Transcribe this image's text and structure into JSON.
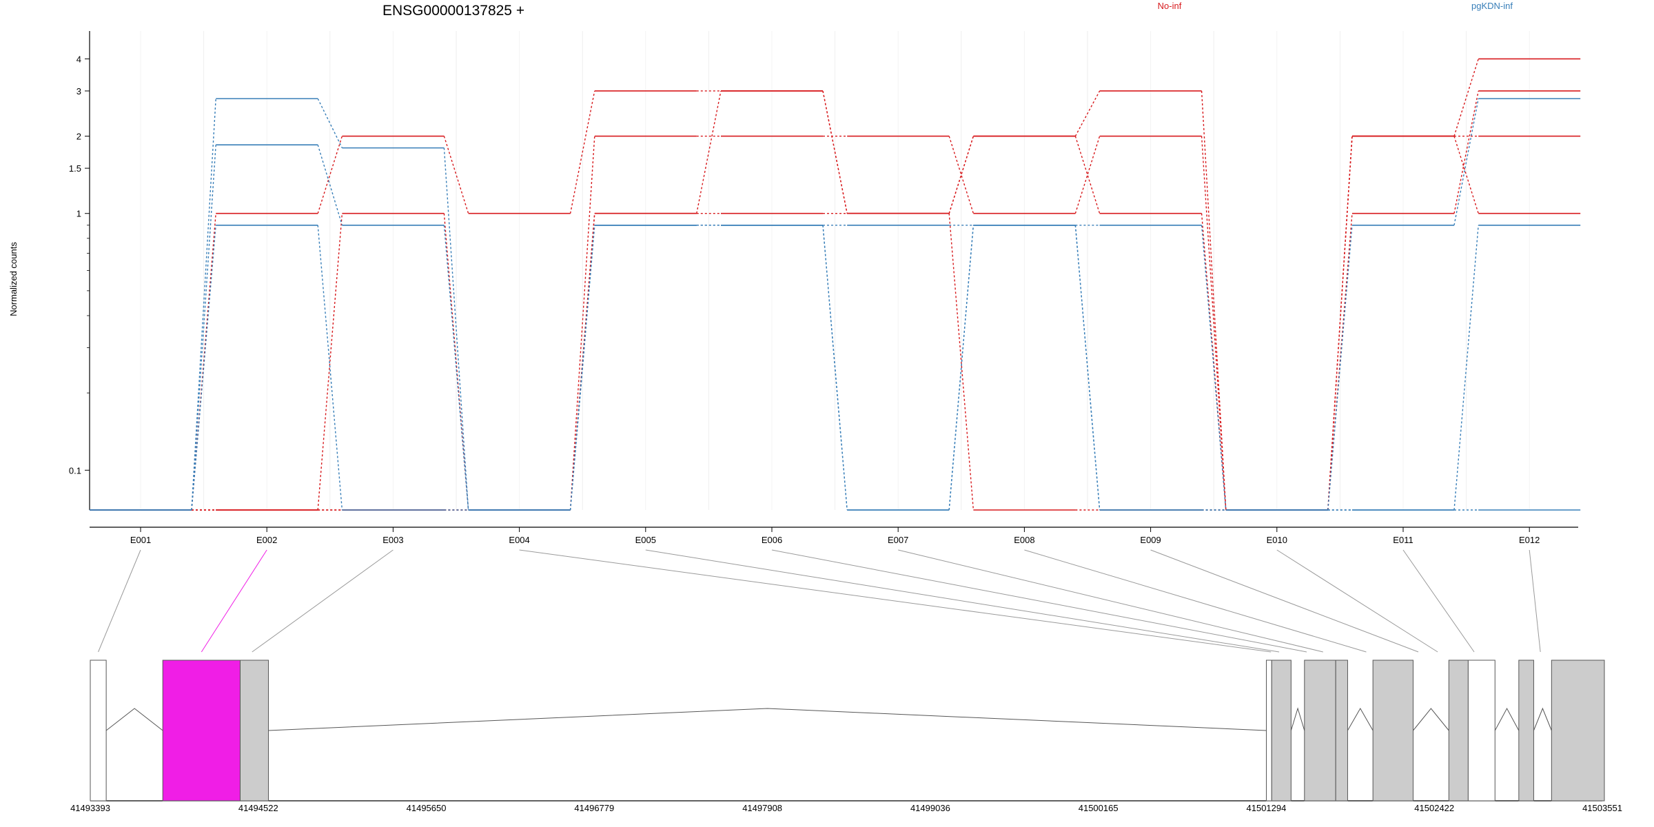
{
  "chart_data": {
    "type": "line",
    "title": "ENSG00000137825 +",
    "ylabel": "Normalized counts",
    "xlabel": "",
    "y_scale": "log",
    "yticks": [
      {
        "value": 0.1,
        "label": "0.1"
      },
      {
        "value": 1,
        "label": "1"
      },
      {
        "value": 1.5,
        "label": "1.5"
      },
      {
        "value": 2,
        "label": "2"
      },
      {
        "value": 3,
        "label": "3"
      },
      {
        "value": 4,
        "label": "4"
      }
    ],
    "ylim": [
      0.07,
      4.4
    ],
    "grid": true,
    "legend_position": "top",
    "legend": [
      {
        "name": "No-inf",
        "color": "#d7191c"
      },
      {
        "name": "pgKDN-inf",
        "color": "#377eb8"
      }
    ],
    "categories": [
      "E001",
      "E002",
      "E003",
      "E004",
      "E005",
      "E006",
      "E007",
      "E008",
      "E009",
      "E010",
      "E011",
      "E012"
    ],
    "series": [
      {
        "group": "No-inf",
        "color": "#d7191c",
        "values": [
          0.07,
          1.0,
          2.0,
          1.0,
          3.0,
          3.0,
          1.0,
          2.0,
          3.0,
          0.07,
          2.0,
          4.0
        ]
      },
      {
        "group": "No-inf",
        "color": "#d7191c",
        "values": [
          0.07,
          0.07,
          1.0,
          0.07,
          2.0,
          2.0,
          2.0,
          1.0,
          2.0,
          0.07,
          1.0,
          3.0
        ]
      },
      {
        "group": "No-inf",
        "color": "#d7191c",
        "values": [
          0.07,
          0.07,
          0.07,
          0.07,
          1.0,
          1.0,
          1.0,
          2.0,
          1.0,
          0.07,
          2.0,
          2.0
        ]
      },
      {
        "group": "No-inf",
        "color": "#d7191c",
        "values": [
          0.07,
          0.07,
          0.07,
          0.07,
          1.0,
          3.0,
          1.0,
          0.07,
          0.07,
          0.07,
          2.0,
          1.0
        ]
      },
      {
        "group": "pgKDN-inf",
        "color": "#377eb8",
        "values": [
          0.07,
          2.8,
          1.8,
          0.07,
          0.9,
          0.9,
          0.9,
          0.9,
          0.9,
          0.07,
          0.9,
          2.8
        ]
      },
      {
        "group": "pgKDN-inf",
        "color": "#377eb8",
        "values": [
          0.07,
          1.85,
          0.9,
          0.07,
          0.9,
          0.9,
          0.07,
          0.9,
          0.07,
          0.07,
          0.07,
          0.9
        ]
      },
      {
        "group": "pgKDN-inf",
        "color": "#377eb8",
        "values": [
          0.07,
          0.9,
          0.07,
          0.07,
          0.9,
          0.9,
          0.07,
          0.9,
          0.07,
          0.07,
          0.07,
          0.07
        ]
      }
    ],
    "gene_track": {
      "coordinates": [
        "41493393",
        "41494522",
        "41495650",
        "41496779",
        "41497908",
        "41499036",
        "41500165",
        "41501294",
        "41502422",
        "41503551"
      ],
      "exon_mapping": [
        {
          "exon": "E001",
          "start": 41493393,
          "end": 41493500
        },
        {
          "exon": "E002",
          "start": 41493880,
          "end": 41494400,
          "highlight": "#f01ee6"
        },
        {
          "exon": "E003",
          "start": 41494400,
          "end": 41494560
        },
        {
          "exon": "E004",
          "start": 41501310,
          "end": 41501340
        },
        {
          "exon": "E005",
          "start": 41501340,
          "end": 41501420
        },
        {
          "exon": "E006",
          "start": 41501490,
          "end": 41501640
        },
        {
          "exon": "E007",
          "start": 41501640,
          "end": 41501710
        },
        {
          "exon": "E008",
          "start": 41501860,
          "end": 41502070
        },
        {
          "exon": "E009",
          "start": 41502260,
          "end": 41502370
        },
        {
          "exon": "E010",
          "start": 41502370,
          "end": 41502520
        },
        {
          "exon": "E011",
          "start": 41502650,
          "end": 41502730
        },
        {
          "exon": "E012",
          "start": 41502840,
          "end": 41503430
        }
      ],
      "connector_color": "#999999",
      "exon_color": "#cccccc"
    }
  }
}
